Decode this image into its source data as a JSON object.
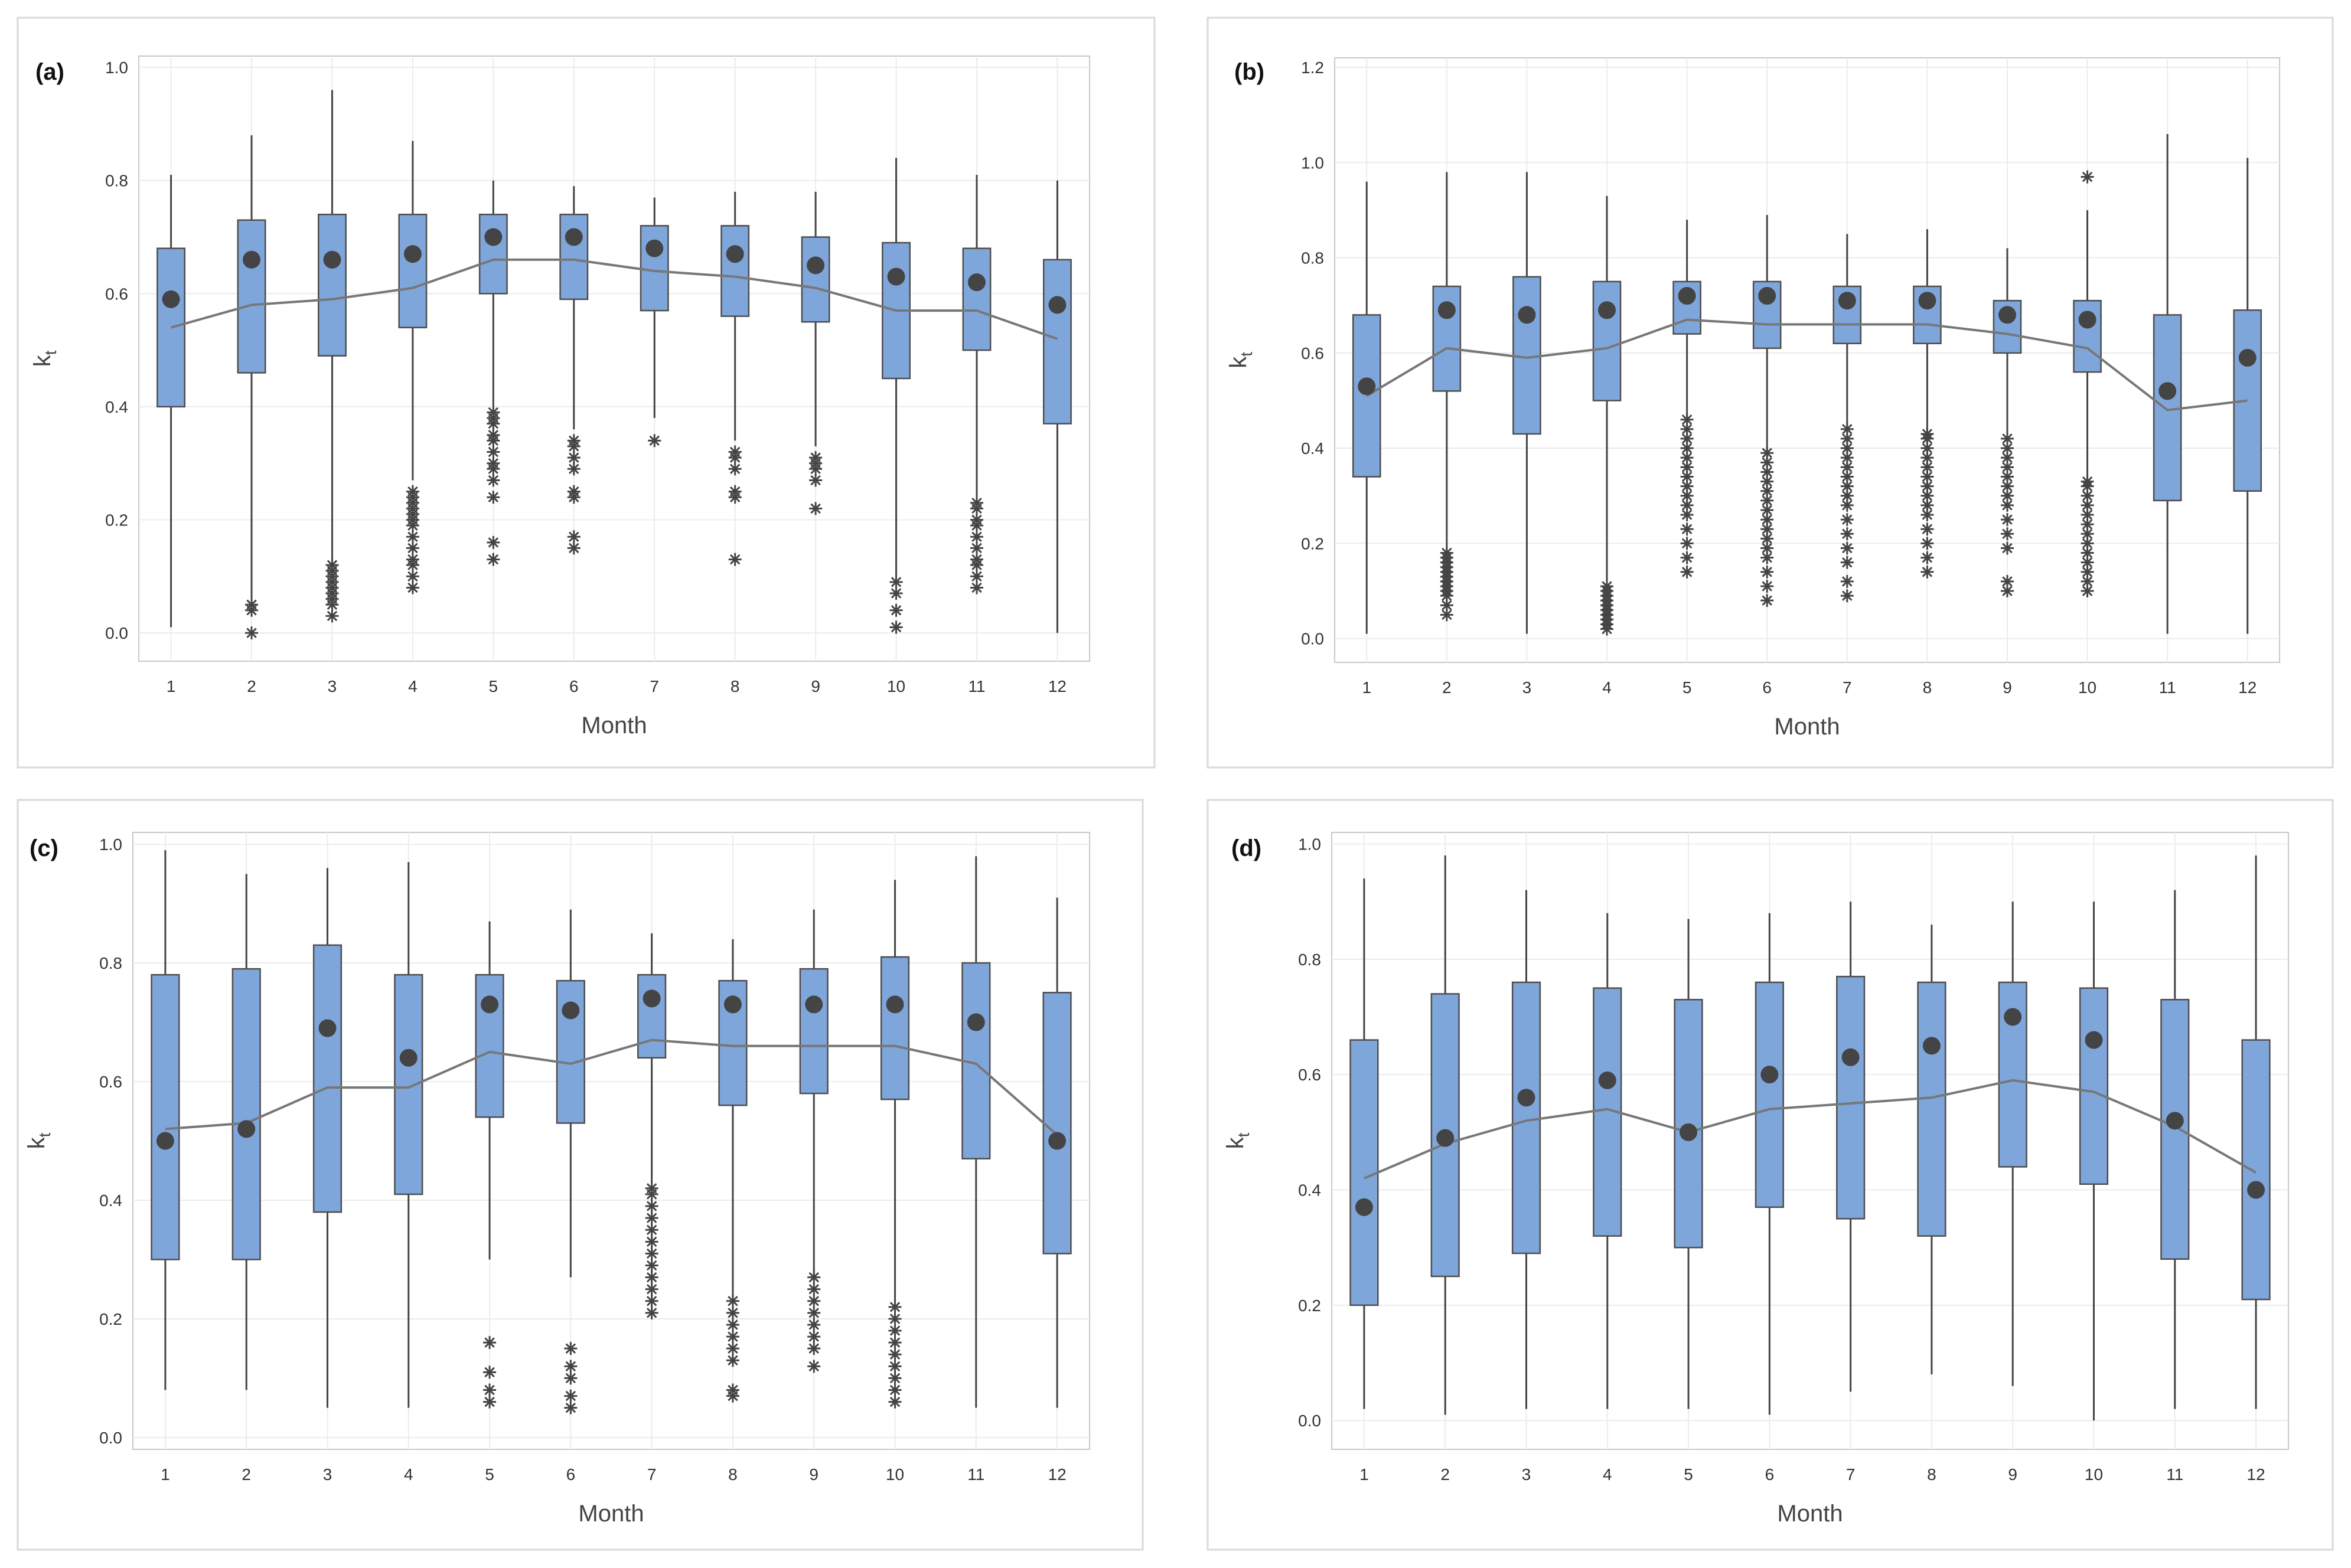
{
  "colors": {
    "box_fill": "#7fa6db",
    "box_edge": "#4d4d4d",
    "marker": "#444444",
    "connect_line": "#777777"
  },
  "chart_data": [
    {
      "type": "boxplot",
      "panel_label": "(a)",
      "xlabel": "Month",
      "ylabel_main": "k",
      "ylabel_sub": "t",
      "ylim": [
        -0.05,
        1.02
      ],
      "yticks": [
        0.0,
        0.2,
        0.4,
        0.6,
        0.8,
        1.0
      ],
      "ytick_labels": [
        "0.0",
        "0.2",
        "0.4",
        "0.6",
        "0.8",
        "1.0"
      ],
      "categories": [
        "1",
        "2",
        "3",
        "4",
        "5",
        "6",
        "7",
        "8",
        "9",
        "10",
        "11",
        "12"
      ],
      "whisker_low": [
        0.01,
        0.06,
        0.13,
        0.27,
        0.4,
        0.36,
        0.38,
        0.34,
        0.33,
        0.1,
        0.24,
        0.0
      ],
      "q1": [
        0.4,
        0.46,
        0.49,
        0.54,
        0.6,
        0.59,
        0.57,
        0.56,
        0.55,
        0.45,
        0.5,
        0.37
      ],
      "q3": [
        0.68,
        0.73,
        0.74,
        0.74,
        0.74,
        0.74,
        0.72,
        0.72,
        0.7,
        0.69,
        0.68,
        0.66
      ],
      "whisker_high": [
        0.81,
        0.88,
        0.96,
        0.87,
        0.8,
        0.79,
        0.77,
        0.78,
        0.78,
        0.84,
        0.81,
        0.8
      ],
      "median": [
        0.59,
        0.66,
        0.66,
        0.67,
        0.7,
        0.7,
        0.68,
        0.67,
        0.65,
        0.63,
        0.62,
        0.58
      ],
      "mean": [
        0.54,
        0.58,
        0.59,
        0.61,
        0.66,
        0.66,
        0.64,
        0.63,
        0.61,
        0.57,
        0.57,
        0.52
      ],
      "outliers": [
        [],
        [
          0.0,
          0.04,
          0.05
        ],
        [
          0.03,
          0.05,
          0.06,
          0.07,
          0.08,
          0.09,
          0.1,
          0.11,
          0.12
        ],
        [
          0.08,
          0.1,
          0.12,
          0.13,
          0.15,
          0.17,
          0.19,
          0.2,
          0.21,
          0.22,
          0.23,
          0.24,
          0.25
        ],
        [
          0.13,
          0.16,
          0.24,
          0.27,
          0.29,
          0.3,
          0.32,
          0.34,
          0.35,
          0.37,
          0.38,
          0.39
        ],
        [
          0.15,
          0.17,
          0.24,
          0.25,
          0.29,
          0.31,
          0.33,
          0.34
        ],
        [
          0.34
        ],
        [
          0.13,
          0.24,
          0.25,
          0.29,
          0.31,
          0.32
        ],
        [
          0.22,
          0.27,
          0.29,
          0.3,
          0.31
        ],
        [
          0.01,
          0.04,
          0.07,
          0.09
        ],
        [
          0.08,
          0.1,
          0.12,
          0.13,
          0.15,
          0.17,
          0.19,
          0.2,
          0.22,
          0.23
        ],
        []
      ]
    },
    {
      "type": "boxplot",
      "panel_label": "(b)",
      "xlabel": "Month",
      "ylabel_main": "k",
      "ylabel_sub": "t",
      "ylim": [
        -0.05,
        1.22
      ],
      "yticks": [
        0.0,
        0.2,
        0.4,
        0.6,
        0.8,
        1.0,
        1.2
      ],
      "ytick_labels": [
        "0.0",
        "0.2",
        "0.4",
        "0.6",
        "0.8",
        "1.0",
        "1.2"
      ],
      "categories": [
        "1",
        "2",
        "3",
        "4",
        "5",
        "6",
        "7",
        "8",
        "9",
        "10",
        "11",
        "12"
      ],
      "whisker_low": [
        0.01,
        0.18,
        0.01,
        0.12,
        0.46,
        0.39,
        0.44,
        0.43,
        0.42,
        0.34,
        0.01,
        0.01
      ],
      "q1": [
        0.34,
        0.52,
        0.43,
        0.5,
        0.64,
        0.61,
        0.62,
        0.62,
        0.6,
        0.56,
        0.29,
        0.31
      ],
      "q3": [
        0.68,
        0.74,
        0.76,
        0.75,
        0.75,
        0.75,
        0.74,
        0.74,
        0.71,
        0.71,
        0.68,
        0.69
      ],
      "whisker_high": [
        0.96,
        0.98,
        0.98,
        0.93,
        0.88,
        0.89,
        0.85,
        0.86,
        0.82,
        0.9,
        1.06,
        1.01
      ],
      "median": [
        0.53,
        0.69,
        0.68,
        0.69,
        0.72,
        0.72,
        0.71,
        0.71,
        0.68,
        0.67,
        0.52,
        0.59
      ],
      "mean": [
        0.51,
        0.61,
        0.59,
        0.61,
        0.67,
        0.66,
        0.66,
        0.66,
        0.64,
        0.61,
        0.48,
        0.5
      ],
      "outliers": [
        [],
        [
          0.05,
          0.07,
          0.09,
          0.1,
          0.11,
          0.12,
          0.13,
          0.14,
          0.15,
          0.16,
          0.17,
          0.18
        ],
        [],
        [
          0.02,
          0.03,
          0.04,
          0.05,
          0.06,
          0.07,
          0.08,
          0.09,
          0.1,
          0.11
        ],
        [
          0.14,
          0.17,
          0.2,
          0.23,
          0.26,
          0.28,
          0.3,
          0.32,
          0.34,
          0.36,
          0.38,
          0.4,
          0.42,
          0.44,
          0.46
        ],
        [
          0.08,
          0.11,
          0.14,
          0.17,
          0.19,
          0.21,
          0.23,
          0.25,
          0.27,
          0.29,
          0.31,
          0.33,
          0.35,
          0.37,
          0.39
        ],
        [
          0.09,
          0.12,
          0.16,
          0.19,
          0.22,
          0.25,
          0.28,
          0.3,
          0.32,
          0.34,
          0.36,
          0.38,
          0.4,
          0.42,
          0.44
        ],
        [
          0.14,
          0.17,
          0.2,
          0.23,
          0.26,
          0.28,
          0.3,
          0.32,
          0.34,
          0.36,
          0.38,
          0.4,
          0.42,
          0.43
        ],
        [
          0.1,
          0.12,
          0.19,
          0.22,
          0.25,
          0.28,
          0.3,
          0.32,
          0.34,
          0.36,
          0.38,
          0.4,
          0.42
        ],
        [
          0.1,
          0.12,
          0.14,
          0.16,
          0.18,
          0.2,
          0.22,
          0.24,
          0.26,
          0.28,
          0.3,
          0.32,
          0.33,
          0.97
        ],
        [],
        []
      ]
    },
    {
      "type": "boxplot",
      "panel_label": "(c)",
      "xlabel": "Month",
      "ylabel_main": "k",
      "ylabel_sub": "t",
      "ylim": [
        -0.02,
        1.02
      ],
      "yticks": [
        0.0,
        0.2,
        0.4,
        0.6,
        0.8,
        1.0
      ],
      "ytick_labels": [
        "0.0",
        "0.2",
        "0.4",
        "0.6",
        "0.8",
        "1.0"
      ],
      "categories": [
        "1",
        "2",
        "3",
        "4",
        "5",
        "6",
        "7",
        "8",
        "9",
        "10",
        "11",
        "12"
      ],
      "whisker_low": [
        0.08,
        0.08,
        0.05,
        0.05,
        0.3,
        0.27,
        0.43,
        0.23,
        0.27,
        0.22,
        0.05,
        0.05
      ],
      "q1": [
        0.3,
        0.3,
        0.38,
        0.41,
        0.54,
        0.53,
        0.64,
        0.56,
        0.58,
        0.57,
        0.47,
        0.31
      ],
      "q3": [
        0.78,
        0.79,
        0.83,
        0.78,
        0.78,
        0.77,
        0.78,
        0.77,
        0.79,
        0.81,
        0.8,
        0.75
      ],
      "whisker_high": [
        0.99,
        0.95,
        0.96,
        0.97,
        0.87,
        0.89,
        0.85,
        0.84,
        0.89,
        0.94,
        0.98,
        0.91
      ],
      "median": [
        0.5,
        0.52,
        0.69,
        0.64,
        0.73,
        0.72,
        0.74,
        0.73,
        0.73,
        0.73,
        0.7,
        0.5
      ],
      "mean": [
        0.52,
        0.53,
        0.59,
        0.59,
        0.65,
        0.63,
        0.67,
        0.66,
        0.66,
        0.66,
        0.63,
        0.51
      ],
      "outliers": [
        [],
        [],
        [],
        [],
        [
          0.06,
          0.08,
          0.11,
          0.16
        ],
        [
          0.05,
          0.07,
          0.1,
          0.12,
          0.15
        ],
        [
          0.21,
          0.23,
          0.25,
          0.27,
          0.29,
          0.31,
          0.33,
          0.35,
          0.37,
          0.39,
          0.41,
          0.42
        ],
        [
          0.07,
          0.08,
          0.13,
          0.15,
          0.17,
          0.19,
          0.21,
          0.23
        ],
        [
          0.12,
          0.15,
          0.17,
          0.19,
          0.21,
          0.23,
          0.25,
          0.27
        ],
        [
          0.06,
          0.08,
          0.1,
          0.12,
          0.14,
          0.16,
          0.18,
          0.2,
          0.22
        ],
        [],
        []
      ]
    },
    {
      "type": "boxplot",
      "panel_label": "(d)",
      "xlabel": "Month",
      "ylabel_main": "k",
      "ylabel_sub": "t",
      "ylim": [
        -0.05,
        1.02
      ],
      "yticks": [
        0.0,
        0.2,
        0.4,
        0.6,
        0.8,
        1.0
      ],
      "ytick_labels": [
        "0.0",
        "0.2",
        "0.4",
        "0.6",
        "0.8",
        "1.0"
      ],
      "categories": [
        "1",
        "2",
        "3",
        "4",
        "5",
        "6",
        "7",
        "8",
        "9",
        "10",
        "11",
        "12"
      ],
      "whisker_low": [
        0.02,
        0.01,
        0.02,
        0.02,
        0.02,
        0.01,
        0.05,
        0.08,
        0.06,
        0.0,
        0.02,
        0.02
      ],
      "q1": [
        0.2,
        0.25,
        0.29,
        0.32,
        0.3,
        0.37,
        0.35,
        0.32,
        0.44,
        0.41,
        0.28,
        0.21
      ],
      "q3": [
        0.66,
        0.74,
        0.76,
        0.75,
        0.73,
        0.76,
        0.77,
        0.76,
        0.76,
        0.75,
        0.73,
        0.66
      ],
      "whisker_high": [
        0.94,
        0.98,
        0.92,
        0.88,
        0.87,
        0.88,
        0.9,
        0.86,
        0.9,
        0.9,
        0.92,
        0.98
      ],
      "median": [
        0.37,
        0.49,
        0.56,
        0.59,
        0.5,
        0.6,
        0.63,
        0.65,
        0.7,
        0.66,
        0.52,
        0.4
      ],
      "mean": [
        0.42,
        0.48,
        0.52,
        0.54,
        0.5,
        0.54,
        0.55,
        0.56,
        0.59,
        0.57,
        0.51,
        0.43
      ],
      "outliers": [
        [],
        [],
        [],
        [],
        [],
        [],
        [],
        [],
        [],
        [],
        [],
        []
      ]
    }
  ]
}
